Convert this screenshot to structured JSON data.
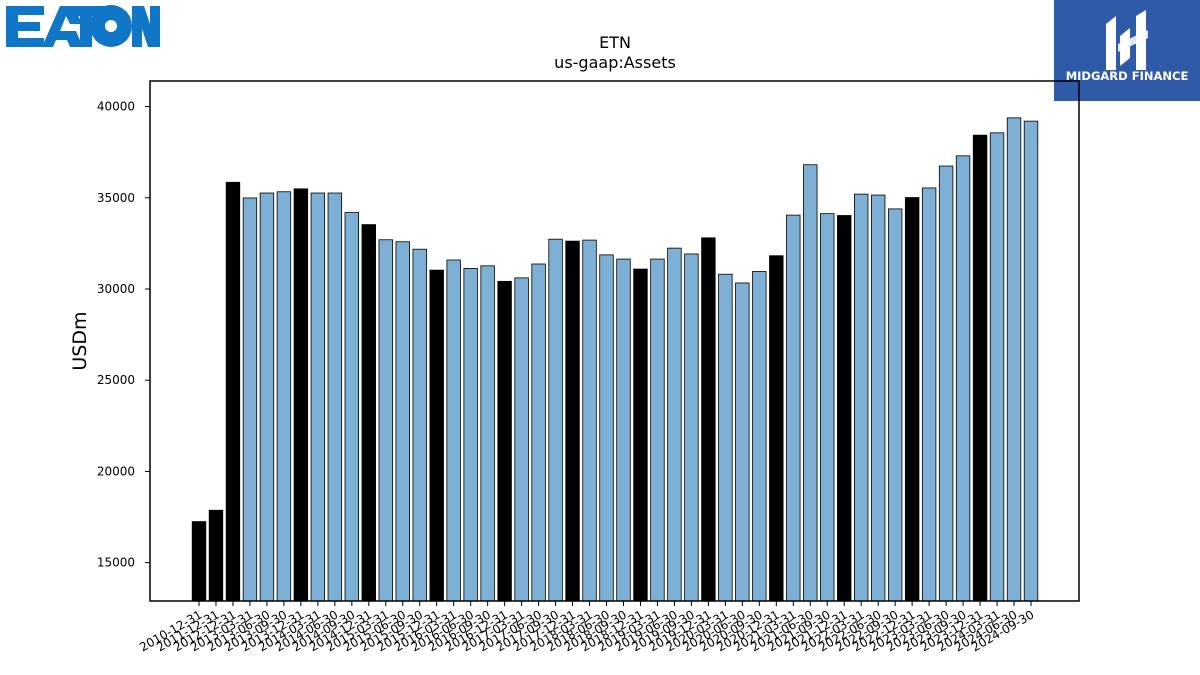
{
  "logos": {
    "left_text": "EATON",
    "right_text": "MIDGARD FINANCE",
    "left_color": "#1076c8",
    "right_color": "#2f5aa8"
  },
  "colors": {
    "annual": "#000000",
    "quarterly": "#7eb0d5",
    "edge": "#000000"
  },
  "chart_data": {
    "type": "bar",
    "title": "ETN",
    "subtitle": "us-gaap:Assets",
    "xlabel": "",
    "ylabel": "USDm",
    "ylim": [
      12900,
      41400
    ],
    "yticks": [
      15000,
      20000,
      25000,
      30000,
      35000,
      40000
    ],
    "categories": [
      "2010-12-31",
      "2011-12-31",
      "2012-12-31",
      "2013-03-31",
      "2013-06-30",
      "2013-09-30",
      "2013-12-31",
      "2014-03-31",
      "2014-06-30",
      "2014-09-30",
      "2014-12-31",
      "2015-03-31",
      "2015-06-30",
      "2015-09-30",
      "2015-12-31",
      "2016-03-31",
      "2016-06-30",
      "2016-09-30",
      "2016-12-31",
      "2017-03-31",
      "2017-06-30",
      "2017-09-30",
      "2017-12-31",
      "2018-03-31",
      "2018-06-30",
      "2018-09-30",
      "2018-12-31",
      "2019-03-31",
      "2019-06-30",
      "2019-09-30",
      "2019-12-31",
      "2020-03-31",
      "2020-06-30",
      "2020-09-30",
      "2020-12-31",
      "2021-03-31",
      "2021-06-30",
      "2021-09-30",
      "2021-12-31",
      "2022-03-31",
      "2022-06-30",
      "2022-09-30",
      "2022-12-31",
      "2023-03-31",
      "2023-06-30",
      "2023-09-30",
      "2023-12-31",
      "2024-03-31",
      "2024-06-30",
      "2024-09-30"
    ],
    "x_tick_labels": [
      "2010-12-31",
      "2011-12-31",
      "2012-12-31",
      "2013-03-31",
      "2013-06-30",
      "2013-09-30",
      "2013-12-31",
      "2014-03-31",
      "2014-06-30",
      "2014-09-30",
      "2014-12-31",
      "2015-03-31",
      "2015-06-30",
      "2015-09-30",
      "2015-12-31",
      "2016-03-31",
      "2016-06-30",
      "2016-09-30",
      "2016-12-31",
      "2017-03-31",
      "2017-06-30",
      "2017-09-30",
      "2017-12-31",
      "2018-03-31",
      "2018-06-30",
      "2018-09-30",
      "2018-12-31",
      "2019-03-31",
      "2019-06-30",
      "2019-09-30",
      "2019-12-31",
      "2020-03-31",
      "2020-06-30",
      "2020-09-30",
      "2020-12-31",
      "2021-03-31",
      "2021-06-30",
      "2021-09-30",
      "2021-12-31",
      "2022-03-31",
      "2022-06-30",
      "2022-09-30",
      "2022-12-31",
      "2023-03-31",
      "2023-06-30",
      "2023-09-30",
      "2023-12-31",
      "2024-03-31",
      "2024-06-30",
      "2024-09-30"
    ],
    "values": [
      17252,
      17873,
      35848,
      34990,
      35260,
      35330,
      35489,
      35260,
      35260,
      34190,
      33529,
      32700,
      32590,
      32180,
      31033,
      31590,
      31130,
      31270,
      30419,
      30610,
      31370,
      32730,
      32623,
      32680,
      31870,
      31640,
      31092,
      31640,
      32240,
      31920,
      32805,
      30810,
      30330,
      30960,
      31824,
      34050,
      36810,
      34130,
      34027,
      35200,
      35150,
      34390,
      35014,
      35540,
      36740,
      37300,
      38432,
      38560,
      39380,
      39200
    ],
    "is_annual": [
      true,
      true,
      true,
      false,
      false,
      false,
      true,
      false,
      false,
      false,
      true,
      false,
      false,
      false,
      true,
      false,
      false,
      false,
      true,
      false,
      false,
      false,
      true,
      false,
      false,
      false,
      true,
      false,
      false,
      false,
      true,
      false,
      false,
      false,
      true,
      false,
      false,
      false,
      true,
      false,
      false,
      false,
      true,
      false,
      false,
      false,
      true,
      false,
      false,
      false
    ],
    "grid": false,
    "legend": "none"
  }
}
